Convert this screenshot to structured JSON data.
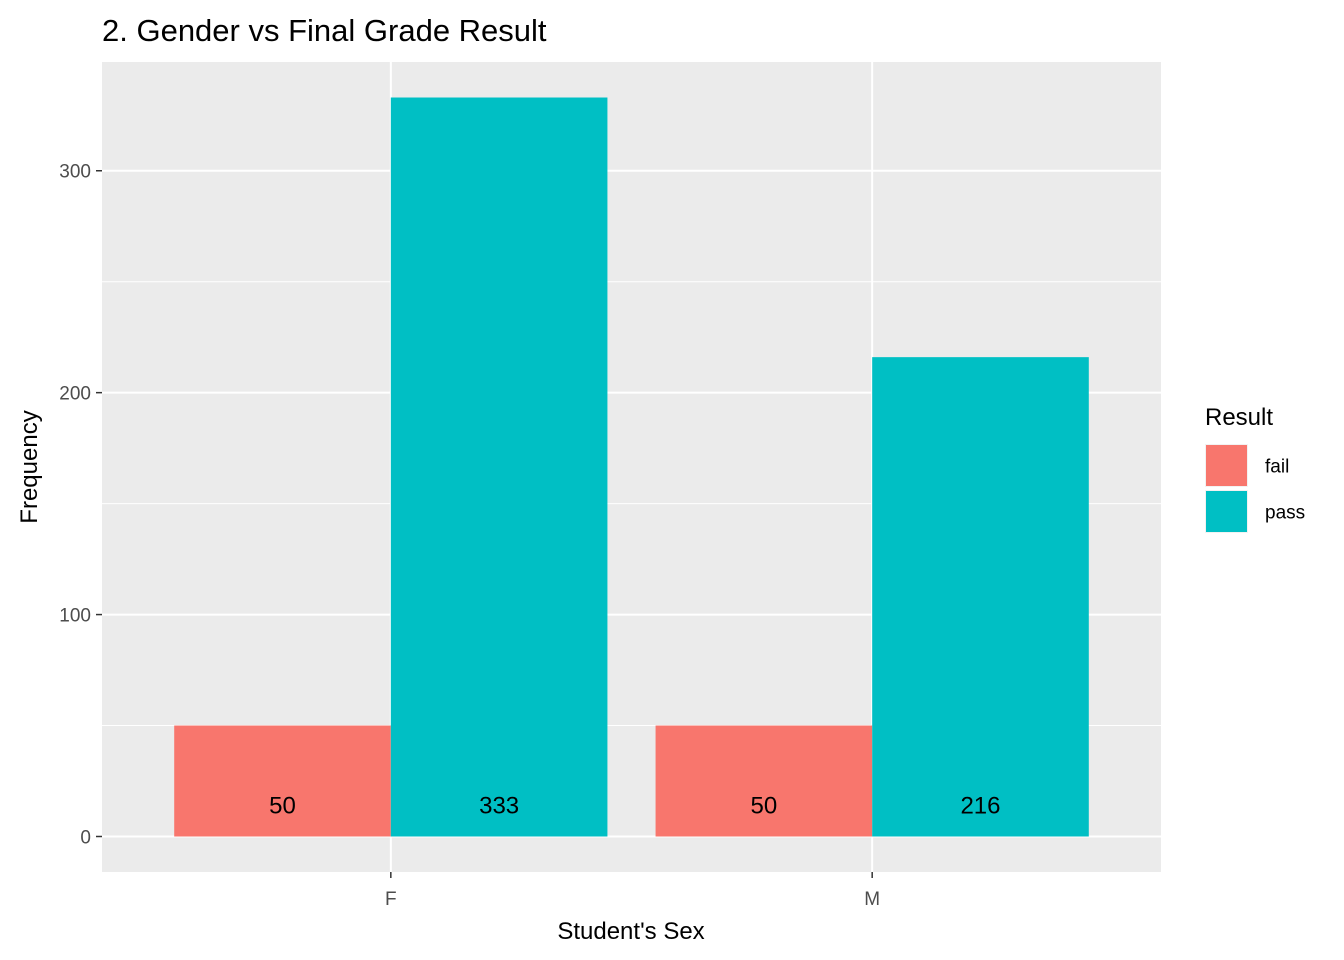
{
  "chart_data": {
    "type": "bar",
    "title": "2. Gender vs Final Grade Result",
    "xlabel": "Student's Sex",
    "ylabel": "Frequency",
    "categories": [
      "F",
      "M"
    ],
    "series": [
      {
        "name": "fail",
        "values": [
          50,
          50
        ],
        "color": "#F8766D"
      },
      {
        "name": "pass",
        "values": [
          333,
          216
        ],
        "color": "#00BFC4"
      }
    ],
    "ylim": [
      -16,
      349
    ],
    "yticks": [
      0,
      100,
      200,
      300
    ],
    "ytick_labels": [
      "0",
      "100",
      "200",
      "300"
    ],
    "legend": {
      "title": "Result",
      "position": "right"
    },
    "grid": true,
    "panel_background": "#EBEBEB",
    "grid_color": "#FFFFFF"
  }
}
